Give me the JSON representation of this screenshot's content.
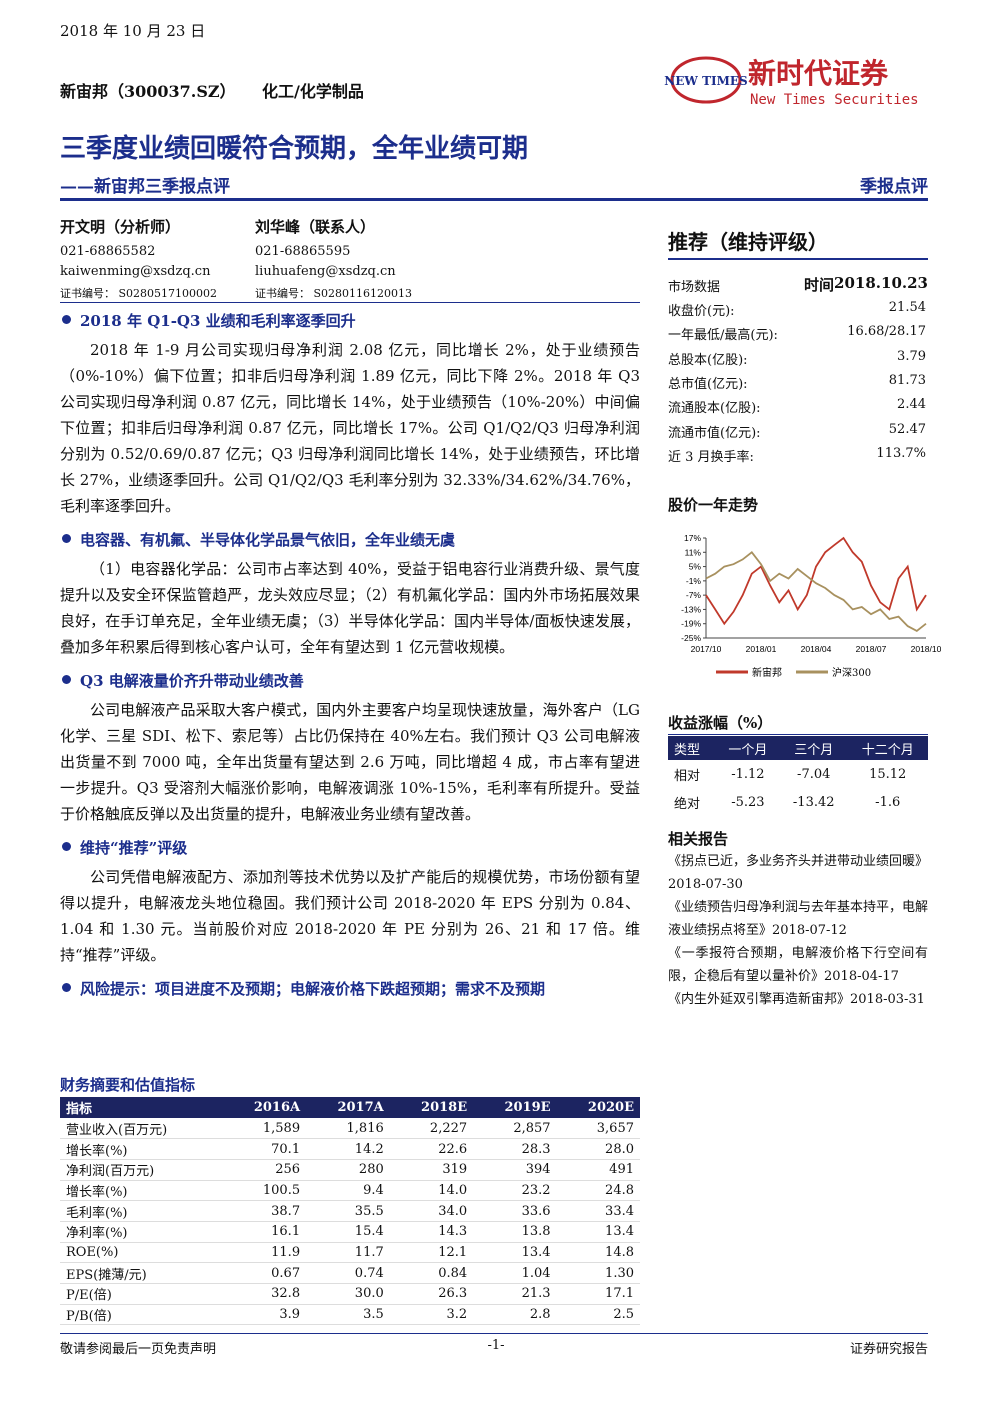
{
  "header": {
    "date": "2018 年 10 月 23 日",
    "company": "新宙邦（300037.SZ）",
    "industry": "化工/化学制品",
    "logo_text": "NEW TIMES",
    "brand_cn": "新时代证券",
    "brand_en": "New Times Securities",
    "title": "三季度业绩回暖符合预期，全年业绩可期",
    "subtitle": "——新宙邦三季报点评",
    "report_type": "季报点评"
  },
  "analysts": [
    {
      "name": "开文明（分析师）",
      "phone": "021-68865582",
      "email": "kaiwenming@xsdzq.cn",
      "cert": "证书编号： S0280517100002"
    },
    {
      "name": "刘华峰（联系人）",
      "phone": "021-68865595",
      "email": "liuhuafeng@xsdzq.cn",
      "cert": "证书编号： S0280116120013"
    }
  ],
  "sections": [
    {
      "heading": "2018 年 Q1-Q3 业绩和毛利率逐季回升",
      "paragraphs": [
        "2018 年 1-9 月公司实现归母净利润 2.08 亿元，同比增长 2%，处于业绩预告（0%-10%）偏下位置；扣非后归母净利润 1.89 亿元，同比下降 2%。2018 年 Q3 公司实现归母净利润 0.87 亿元，同比增长 14%，处于业绩预告（10%-20%）中间偏下位置；扣非后归母净利润 0.87 亿元，同比增长 17%。公司 Q1/Q2/Q3 归母净利润分别为 0.52/0.69/0.87 亿元；Q3 归母净利润同比增长 14%，处于业绩预告，环比增长 27%，业绩逐季回升。公司 Q1/Q2/Q3 毛利率分别为 32.33%/34.62%/34.76%，毛利率逐季回升。"
      ]
    },
    {
      "heading": "电容器、有机氟、半导体化学品景气依旧，全年业绩无虞",
      "paragraphs": [
        "（1）电容器化学品：公司市占率达到 40%，受益于铝电容行业消费升级、景气度提升以及安全环保监管趋严，龙头效应尽显；（2）有机氟化学品：国内外市场拓展效果良好，在手订单充足，全年业绩无虞；（3）半导体化学品：国内半导体/面板快速发展，叠加多年积累后得到核心客户认可，全年有望达到 1 亿元营收规模。"
      ]
    },
    {
      "heading": "Q3 电解液量价齐升带动业绩改善",
      "paragraphs": [
        "公司电解液产品采取大客户模式，国内外主要客户均呈现快速放量，海外客户（LG 化学、三星 SDI、松下、索尼等）占比仍保持在 40%左右。我们预计 Q3 公司电解液出货量不到 7000 吨，全年出货量有望达到 2.6 万吨，同比增超 4 成，市占率有望进一步提升。Q3 受溶剂大幅涨价影响，电解液调涨 10%-15%，毛利率有所提升。受益于价格触底反弹以及出货量的提升，电解液业务业绩有望改善。"
      ]
    },
    {
      "heading": "维持“推荐”评级",
      "paragraphs": [
        "公司凭借电解液配方、添加剂等技术优势以及扩产能后的规模优势，市场份额有望得以提升，电解液龙头地位稳固。我们预计公司 2018-2020 年 EPS 分别为 0.84、1.04 和 1.30 元。当前股价对应 2018-2020 年 PE 分别为 26、21 和 17 倍。维持“推荐”评级。"
      ]
    },
    {
      "heading": "风险提示：项目进度不及预期；电解液价格下跌超预期；需求不及预期",
      "paragraphs": []
    }
  ],
  "fin_table": {
    "title": "财务摘要和估值指标",
    "columns": [
      "指标",
      "2016A",
      "2017A",
      "2018E",
      "2019E",
      "2020E"
    ],
    "rows": [
      [
        "营业收入(百万元)",
        "1,589",
        "1,816",
        "2,227",
        "2,857",
        "3,657"
      ],
      [
        "增长率(%)",
        "70.1",
        "14.2",
        "22.6",
        "28.3",
        "28.0"
      ],
      [
        "净利润(百万元)",
        "256",
        "280",
        "319",
        "394",
        "491"
      ],
      [
        "增长率(%)",
        "100.5",
        "9.4",
        "14.0",
        "23.2",
        "24.8"
      ],
      [
        "毛利率(%)",
        "38.7",
        "35.5",
        "34.0",
        "33.6",
        "33.4"
      ],
      [
        "净利率(%)",
        "16.1",
        "15.4",
        "14.3",
        "13.8",
        "13.4"
      ],
      [
        "ROE(%)",
        "11.9",
        "11.7",
        "12.1",
        "13.4",
        "14.8"
      ],
      [
        "EPS(摊薄/元)",
        "0.67",
        "0.74",
        "0.84",
        "1.04",
        "1.30"
      ],
      [
        "P/E(倍)",
        "32.8",
        "30.0",
        "26.3",
        "21.3",
        "17.1"
      ],
      [
        "P/B(倍)",
        "3.9",
        "3.5",
        "3.2",
        "2.8",
        "2.5"
      ]
    ]
  },
  "rating": "推荐（维持评级）",
  "market": {
    "label": "市场数据",
    "time_label": "时间",
    "time": "2018.10.23",
    "rows": [
      [
        "收盘价(元):",
        "21.54"
      ],
      [
        "一年最低/最高(元):",
        "16.68/28.17"
      ],
      [
        "总股本(亿股):",
        "3.79"
      ],
      [
        "总市值(亿元):",
        "81.73"
      ],
      [
        "流通股本(亿股):",
        "2.44"
      ],
      [
        "流通市值(亿元):",
        "52.47"
      ],
      [
        "近 3 月换手率:",
        "113.7%"
      ]
    ]
  },
  "chart": {
    "type": "line",
    "title": "股价一年走势",
    "categories": [
      "2017/10",
      "2018/01",
      "2018/04",
      "2018/07",
      "2018/10"
    ],
    "ylim": [
      -25,
      17
    ],
    "yticks": [
      {
        "value": 17,
        "label": "17%"
      },
      {
        "value": 11,
        "label": "11%"
      },
      {
        "value": 5,
        "label": "5%"
      },
      {
        "value": -1,
        "label": "-1%"
      },
      {
        "value": -7,
        "label": "-7%"
      },
      {
        "value": -13,
        "label": "-13%"
      },
      {
        "value": -19,
        "label": "-19%"
      },
      {
        "value": -25,
        "label": "-25%"
      }
    ],
    "series": [
      {
        "name": "新宙邦",
        "color": "#c0392b",
        "values": [
          -7,
          -13,
          -19,
          -14,
          -7,
          2,
          5,
          -3,
          -10,
          -5,
          -13,
          -7,
          5,
          11,
          14,
          17,
          11,
          7,
          -3,
          -10,
          -13,
          0,
          5,
          -13,
          -7
        ]
      },
      {
        "name": "沪深300",
        "color": "#a8915f",
        "values": [
          0,
          2,
          5,
          6,
          8,
          11,
          6,
          -1,
          2,
          0,
          4,
          1,
          -2,
          -4,
          -7,
          -9,
          -13,
          -12,
          -15,
          -13,
          -17,
          -16,
          -20,
          -22,
          -19
        ]
      }
    ]
  },
  "returns": {
    "title": "收益涨幅（%）",
    "columns": [
      "类型",
      "一个月",
      "三个月",
      "十二个月"
    ],
    "rows": [
      [
        "相对",
        "-1.12",
        "-7.04",
        "15.12"
      ],
      [
        "绝对",
        "-5.23",
        "-13.42",
        "-1.6"
      ]
    ]
  },
  "related": {
    "title": "相关报告",
    "items": [
      "《拐点已近，多业务齐头并进带动业绩回暖》2018-07-30",
      "《业绩预告归母净利润与去年基本持平，电解液业绩拐点将至》2018-07-12",
      "《一季报符合预期，电解液价格下行空间有限，企稳后有望以量补价》2018-04-17",
      "《内生外延双引擎再造新宙邦》2018-03-31"
    ]
  },
  "footer": {
    "left": "敬请参阅最后一页免责声明",
    "page": "-1-",
    "right": "证券研究报告"
  }
}
